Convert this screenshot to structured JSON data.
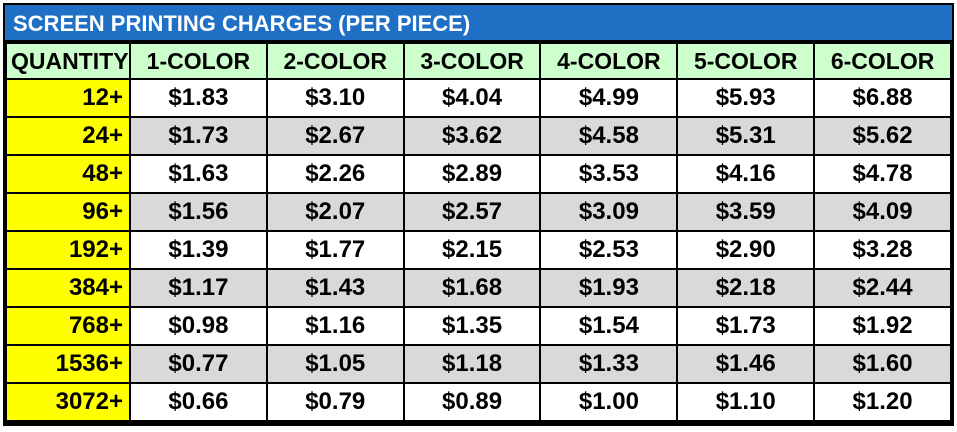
{
  "title": "SCREEN PRINTING CHARGES (PER PIECE)",
  "colors": {
    "title_bar": "#1f6fc5",
    "header_bg": "#ccffcc",
    "quantity_bg": "#ffff00",
    "row_alt_bg": "#d9d9d9"
  },
  "headers": [
    "QUANTITY",
    "1-COLOR",
    "2-COLOR",
    "3-COLOR",
    "4-COLOR",
    "5-COLOR",
    "6-COLOR"
  ],
  "rows": [
    {
      "qty": "12+",
      "prices": [
        "$1.83",
        "$3.10",
        "$4.04",
        "$4.99",
        "$5.93",
        "$6.88"
      ]
    },
    {
      "qty": "24+",
      "prices": [
        "$1.73",
        "$2.67",
        "$3.62",
        "$4.58",
        "$5.31",
        "$5.62"
      ]
    },
    {
      "qty": "48+",
      "prices": [
        "$1.63",
        "$2.26",
        "$2.89",
        "$3.53",
        "$4.16",
        "$4.78"
      ]
    },
    {
      "qty": "96+",
      "prices": [
        "$1.56",
        "$2.07",
        "$2.57",
        "$3.09",
        "$3.59",
        "$4.09"
      ]
    },
    {
      "qty": "192+",
      "prices": [
        "$1.39",
        "$1.77",
        "$2.15",
        "$2.53",
        "$2.90",
        "$3.28"
      ]
    },
    {
      "qty": "384+",
      "prices": [
        "$1.17",
        "$1.43",
        "$1.68",
        "$1.93",
        "$2.18",
        "$2.44"
      ]
    },
    {
      "qty": "768+",
      "prices": [
        "$0.98",
        "$1.16",
        "$1.35",
        "$1.54",
        "$1.73",
        "$1.92"
      ]
    },
    {
      "qty": "1536+",
      "prices": [
        "$0.77",
        "$1.05",
        "$1.18",
        "$1.33",
        "$1.46",
        "$1.60"
      ]
    },
    {
      "qty": "3072+",
      "prices": [
        "$0.66",
        "$0.79",
        "$0.89",
        "$1.00",
        "$1.10",
        "$1.20"
      ]
    }
  ]
}
